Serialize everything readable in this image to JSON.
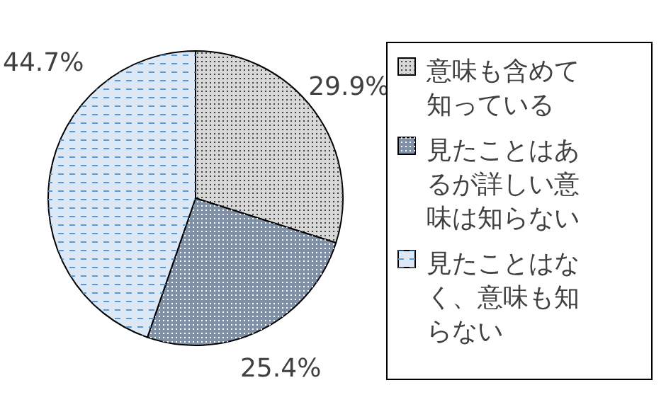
{
  "chart_data": {
    "type": "pie",
    "categories": [
      "意味も含めて知っている",
      "見たことはあるが詳しい意味は知らない",
      "見たことはなく、意味も知らない"
    ],
    "values": [
      29.9,
      25.4,
      44.7
    ],
    "colors": [
      "#d8d8d8",
      "#7f8fa6",
      "#dde8f7"
    ],
    "value_labels": [
      "29.9%",
      "25.4%",
      "44.7%"
    ],
    "legend": "right"
  }
}
